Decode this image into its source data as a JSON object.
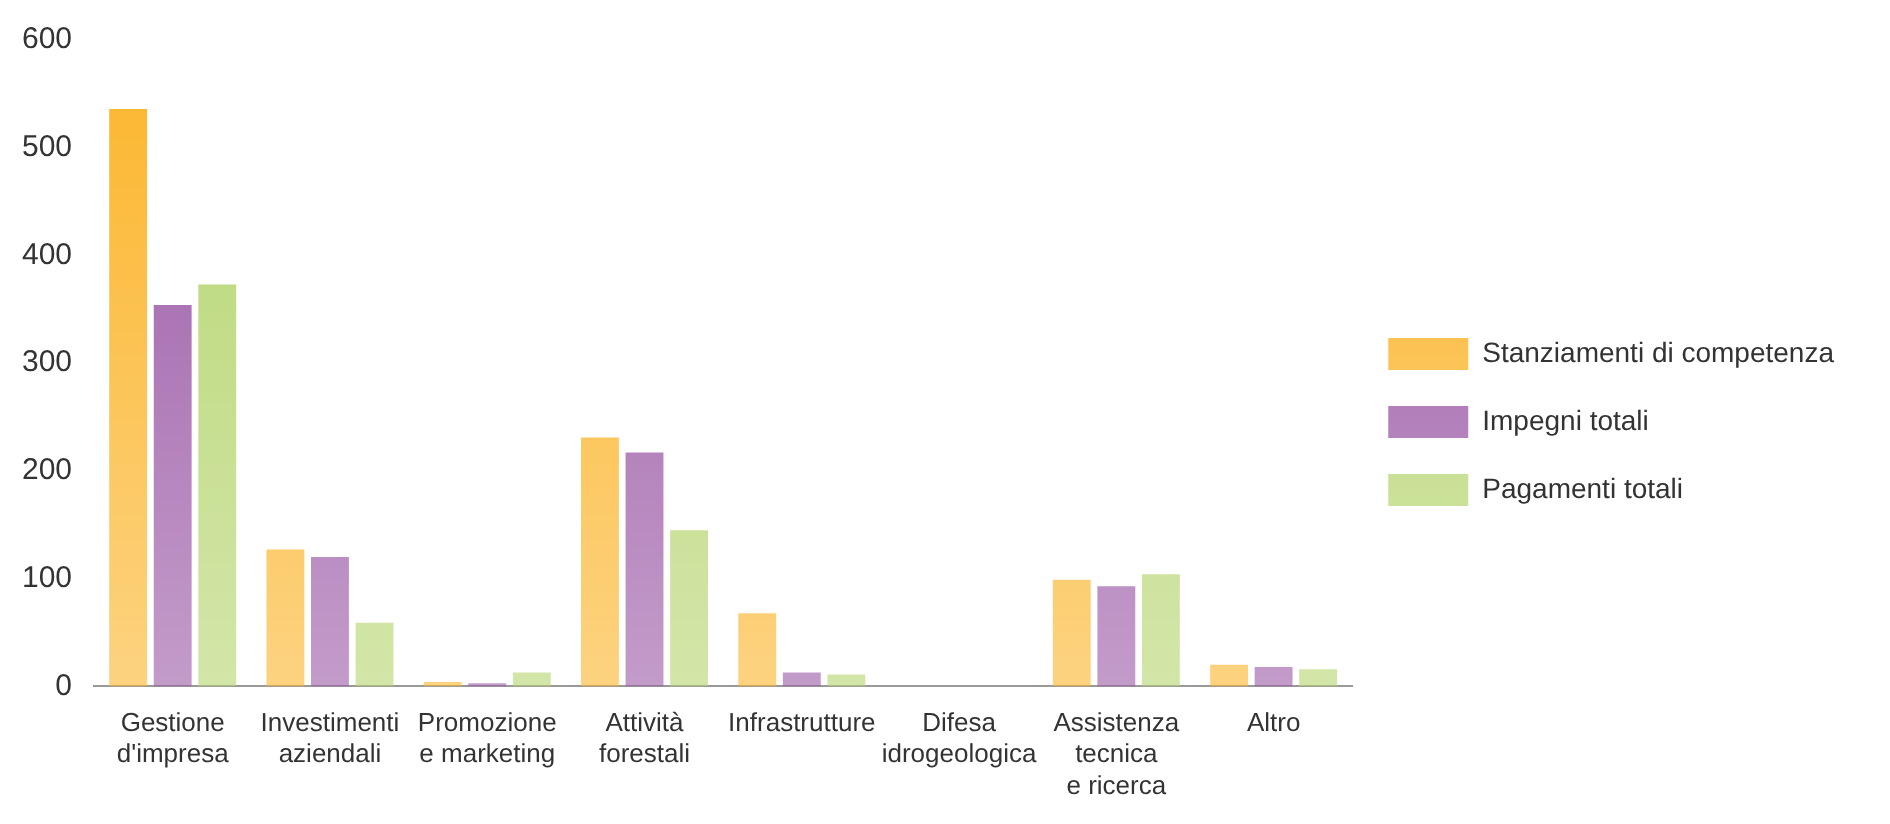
{
  "chart_data": {
    "type": "bar",
    "categories": [
      "Gestione\nd'impresa",
      "Investimenti\naziendali",
      "Promozione\ne marketing",
      "Attività\nforestali",
      "Infrastrutture",
      "Difesa\nidrogeologica",
      "Assistenza\ntecnica\ne ricerca",
      "Altro"
    ],
    "series": [
      {
        "name": "Stanziamenti di competenza",
        "color": "#fbb52b",
        "values": [
          536,
          127,
          4,
          231,
          68,
          0,
          99,
          20
        ]
      },
      {
        "name": "Impegni totali",
        "color": "#9b59a6",
        "values": [
          354,
          120,
          3,
          217,
          13,
          0,
          93,
          18
        ]
      },
      {
        "name": "Pagamenti totali",
        "color": "#b5d56f",
        "values": [
          373,
          59,
          13,
          145,
          11,
          0,
          104,
          16
        ]
      }
    ],
    "ylim": [
      0,
      600
    ],
    "yticks": [
      0,
      100,
      200,
      300,
      400,
      500,
      600
    ],
    "grid": false,
    "legend": "right"
  }
}
